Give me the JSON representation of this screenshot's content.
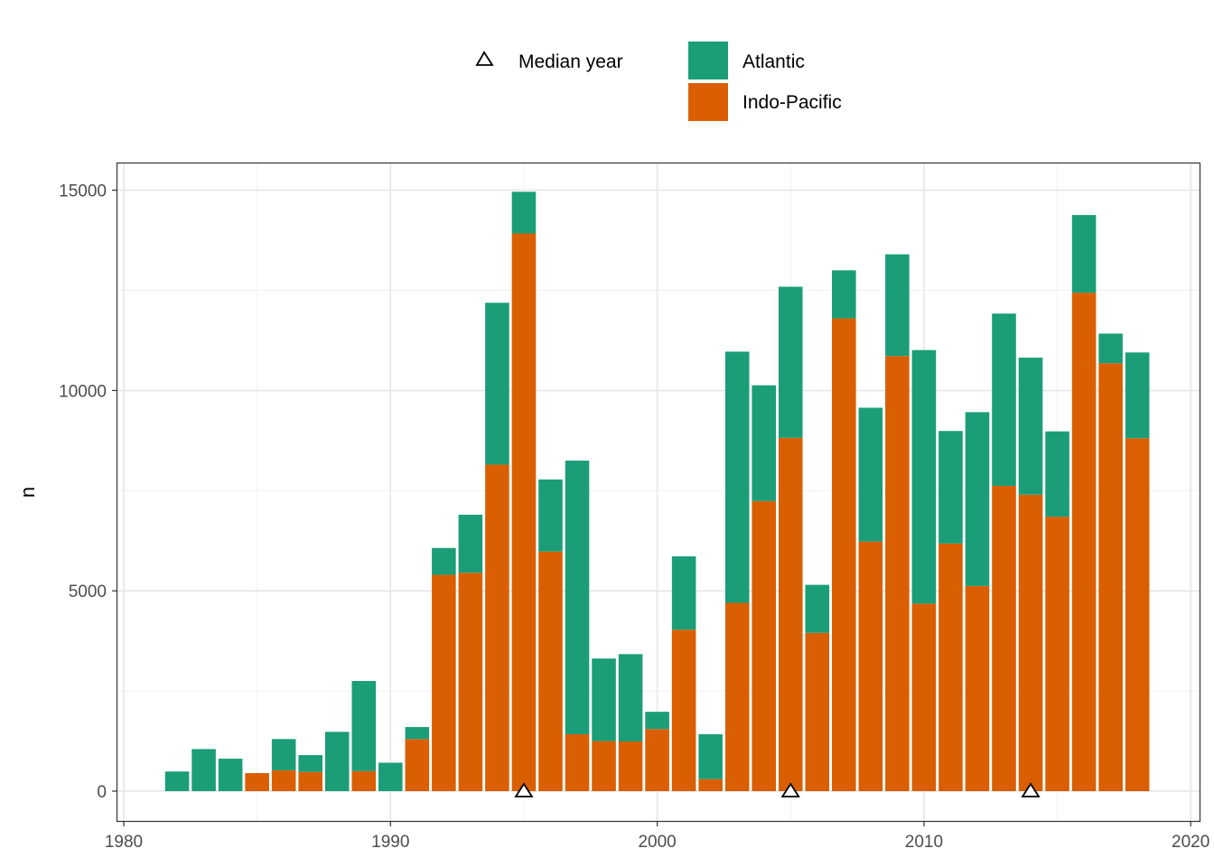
{
  "chart_data": {
    "type": "bar",
    "stacked": true,
    "ylabel": "n",
    "xlabel": "",
    "xlim": [
      1980,
      2020
    ],
    "ylim": [
      0,
      15000
    ],
    "x_ticks": [
      "1980",
      "1990",
      "2000",
      "2010",
      "2020"
    ],
    "y_ticks": [
      "0",
      "5000",
      "10000",
      "15000"
    ],
    "grid": true,
    "legend_position": "top",
    "years": [
      1982,
      1983,
      1984,
      1985,
      1986,
      1987,
      1988,
      1989,
      1990,
      1991,
      1992,
      1993,
      1994,
      1995,
      1996,
      1997,
      1998,
      1999,
      2000,
      2001,
      2002,
      2003,
      2004,
      2005,
      2006,
      2007,
      2008,
      2009,
      2010,
      2011,
      2012,
      2013,
      2014,
      2015,
      2016,
      2017,
      2018
    ],
    "series": [
      {
        "name": "Indo-Pacific",
        "color": "#d95f02",
        "values": [
          0,
          0,
          0,
          450,
          520,
          480,
          0,
          500,
          0,
          1300,
          5400,
          5450,
          8150,
          13920,
          5980,
          1420,
          1250,
          1240,
          1550,
          4030,
          300,
          4700,
          7240,
          8820,
          3950,
          11800,
          6230,
          10860,
          4680,
          6180,
          5120,
          7620,
          7400,
          6850,
          12440,
          10680,
          8810
        ]
      },
      {
        "name": "Atlantic",
        "color": "#1b9e77",
        "values": [
          490,
          1050,
          810,
          0,
          780,
          420,
          1480,
          2250,
          710,
          300,
          670,
          1450,
          4040,
          1040,
          1800,
          6830,
          2060,
          2180,
          430,
          1830,
          1120,
          6270,
          2890,
          3770,
          1200,
          1200,
          3340,
          2540,
          6330,
          2810,
          4340,
          4300,
          3420,
          2130,
          1940,
          740,
          2140
        ]
      }
    ],
    "median_markers": {
      "name": "Median year",
      "years": [
        1995,
        2005,
        2014
      ],
      "value": 0
    }
  }
}
